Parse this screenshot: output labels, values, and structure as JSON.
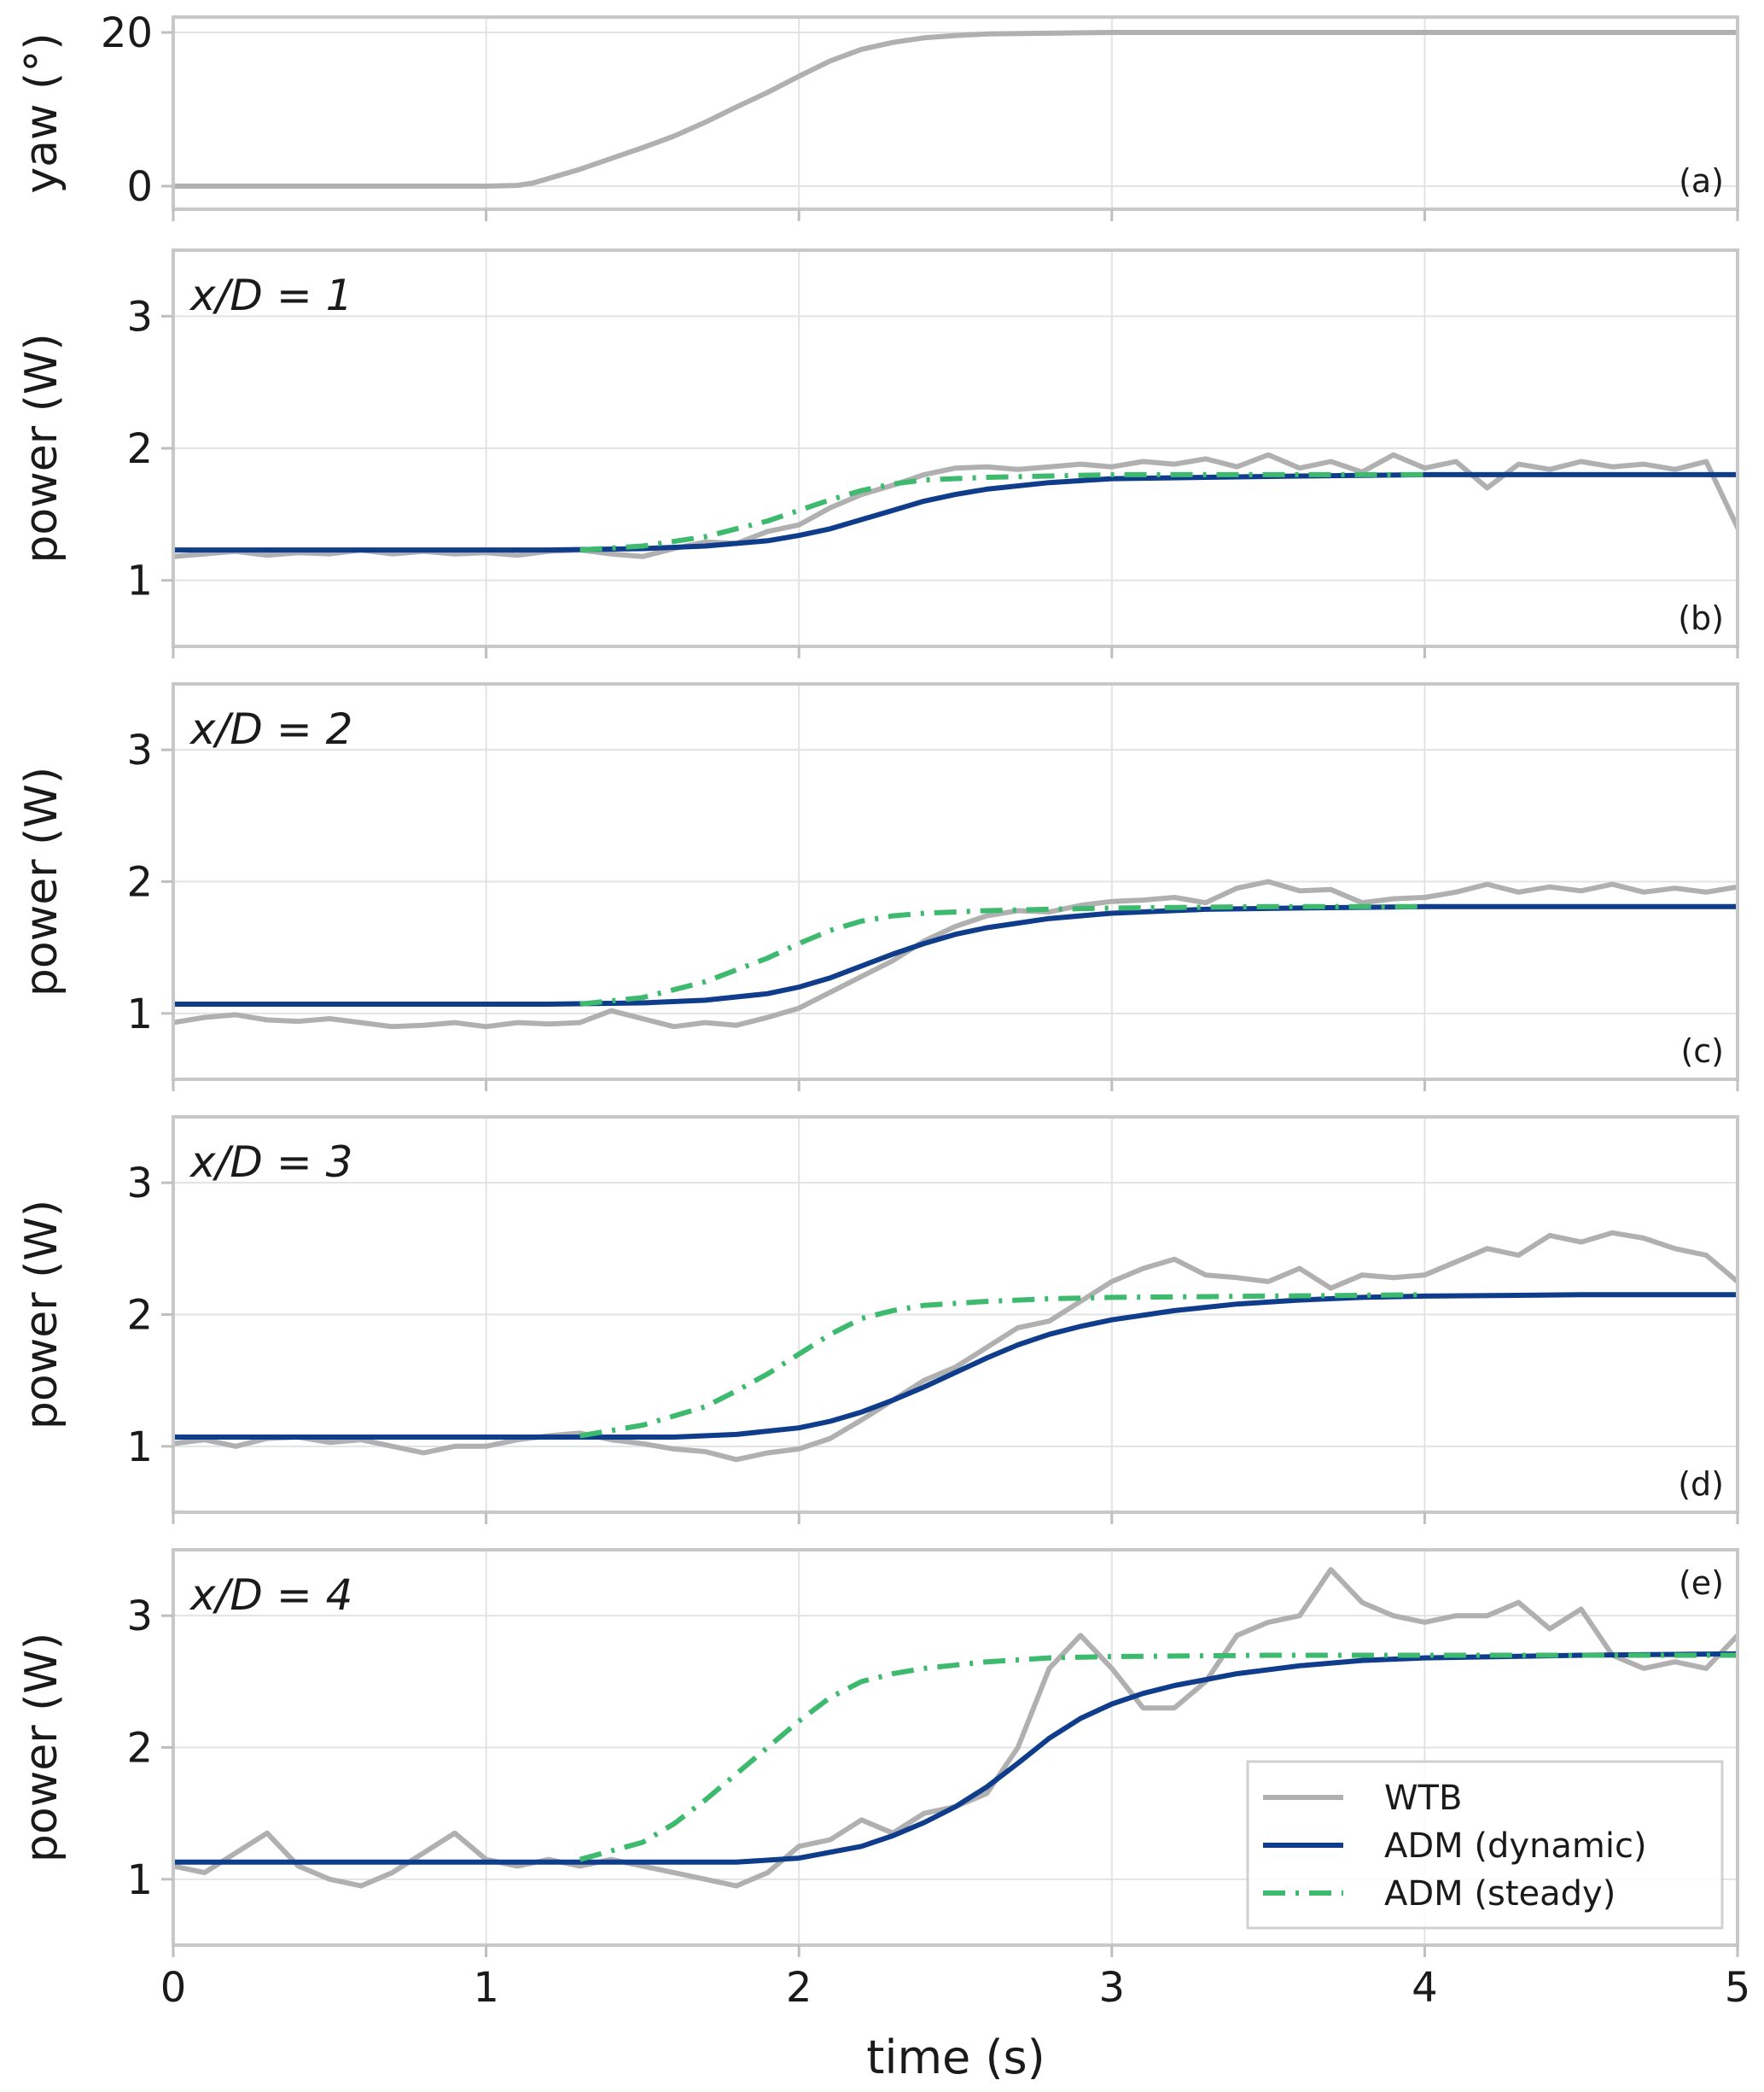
{
  "figure": {
    "xlabel": "time (s)",
    "xlim": [
      0,
      5
    ],
    "xticks": [
      0,
      1,
      2,
      3,
      4,
      5
    ],
    "legend": {
      "placement": "lower-right of panel (e)",
      "entries": [
        {
          "name": "WTB",
          "color": "#b0b0b0",
          "style": "solid"
        },
        {
          "name": "ADM (dynamic)",
          "color": "#0f3d8c",
          "style": "solid"
        },
        {
          "name": "ADM (steady)",
          "color": "#3dba6e",
          "style": "dashdot"
        }
      ]
    }
  },
  "chart_data": [
    {
      "type": "line",
      "panel_label": "(a)",
      "annotation": "",
      "ylabel": "yaw (°)",
      "ylim": [
        -3,
        22
      ],
      "yticks": [
        0,
        20
      ],
      "grid": true,
      "series": [
        {
          "name": "yaw",
          "color": "#b0b0b0",
          "x": [
            0,
            1.0,
            1.1,
            1.15,
            1.2,
            1.3,
            1.4,
            1.5,
            1.6,
            1.7,
            1.8,
            1.9,
            2.0,
            2.1,
            2.2,
            2.3,
            2.4,
            2.5,
            2.6,
            2.8,
            3.0,
            4.0,
            5.0
          ],
          "y": [
            0,
            0,
            0.1,
            0.4,
            1.0,
            2.2,
            3.6,
            5.0,
            6.5,
            8.3,
            10.3,
            12.2,
            14.3,
            16.3,
            17.8,
            18.7,
            19.3,
            19.6,
            19.8,
            19.9,
            20,
            20,
            20
          ]
        }
      ]
    },
    {
      "type": "line",
      "panel_label": "(b)",
      "annotation": "x/D = 1",
      "ylabel": "power (W)",
      "ylim": [
        0.5,
        3.5
      ],
      "yticks": [
        1,
        2,
        3
      ],
      "grid": true,
      "series": [
        {
          "name": "WTB",
          "color": "#b0b0b0",
          "x": [
            0,
            0.1,
            0.2,
            0.3,
            0.4,
            0.5,
            0.6,
            0.7,
            0.8,
            0.9,
            1.0,
            1.1,
            1.2,
            1.3,
            1.4,
            1.5,
            1.6,
            1.7,
            1.8,
            1.9,
            2.0,
            2.1,
            2.2,
            2.3,
            2.4,
            2.5,
            2.6,
            2.7,
            2.8,
            2.9,
            3.0,
            3.1,
            3.2,
            3.3,
            3.4,
            3.5,
            3.6,
            3.7,
            3.8,
            3.9,
            4.0,
            4.1,
            4.2,
            4.3,
            4.4,
            4.5,
            4.6,
            4.7,
            4.8,
            4.9,
            5.0
          ],
          "y": [
            1.18,
            1.2,
            1.22,
            1.19,
            1.21,
            1.2,
            1.23,
            1.2,
            1.22,
            1.2,
            1.21,
            1.19,
            1.22,
            1.23,
            1.2,
            1.18,
            1.24,
            1.29,
            1.28,
            1.37,
            1.42,
            1.55,
            1.65,
            1.72,
            1.8,
            1.85,
            1.86,
            1.84,
            1.86,
            1.88,
            1.86,
            1.9,
            1.88,
            1.92,
            1.86,
            1.95,
            1.85,
            1.9,
            1.82,
            1.95,
            1.85,
            1.9,
            1.7,
            1.88,
            1.84,
            1.9,
            1.86,
            1.88,
            1.84,
            1.9,
            1.4
          ]
        },
        {
          "name": "ADM (dynamic)",
          "color": "#0f3d8c",
          "x": [
            0,
            1.2,
            1.5,
            1.7,
            1.9,
            2.0,
            2.1,
            2.2,
            2.3,
            2.4,
            2.5,
            2.6,
            2.8,
            3.0,
            3.3,
            3.6,
            4.0,
            4.5,
            5.0
          ],
          "y": [
            1.23,
            1.23,
            1.24,
            1.26,
            1.3,
            1.34,
            1.39,
            1.46,
            1.53,
            1.6,
            1.65,
            1.69,
            1.74,
            1.77,
            1.78,
            1.79,
            1.8,
            1.8,
            1.8
          ]
        },
        {
          "name": "ADM (steady)",
          "color": "#3dba6e",
          "x": [
            1.3,
            1.5,
            1.7,
            1.9,
            2.0,
            2.1,
            2.2,
            2.3,
            2.4,
            2.6,
            2.8,
            3.0,
            3.5,
            4.0
          ],
          "y": [
            1.23,
            1.26,
            1.33,
            1.45,
            1.53,
            1.61,
            1.68,
            1.73,
            1.76,
            1.78,
            1.79,
            1.8,
            1.8,
            1.8
          ]
        }
      ]
    },
    {
      "type": "line",
      "panel_label": "(c)",
      "annotation": "x/D = 2",
      "ylabel": "power (W)",
      "ylim": [
        0.5,
        3.5
      ],
      "yticks": [
        1,
        2,
        3
      ],
      "grid": true,
      "series": [
        {
          "name": "WTB",
          "color": "#b0b0b0",
          "x": [
            0,
            0.1,
            0.2,
            0.3,
            0.4,
            0.5,
            0.6,
            0.7,
            0.8,
            0.9,
            1.0,
            1.1,
            1.2,
            1.3,
            1.4,
            1.5,
            1.6,
            1.7,
            1.8,
            1.9,
            2.0,
            2.1,
            2.2,
            2.3,
            2.4,
            2.5,
            2.6,
            2.7,
            2.8,
            2.9,
            3.0,
            3.1,
            3.2,
            3.3,
            3.4,
            3.5,
            3.6,
            3.7,
            3.8,
            3.9,
            4.0,
            4.1,
            4.2,
            4.3,
            4.4,
            4.5,
            4.6,
            4.7,
            4.8,
            4.9,
            5.0
          ],
          "y": [
            0.93,
            0.97,
            0.99,
            0.95,
            0.94,
            0.96,
            0.93,
            0.9,
            0.91,
            0.93,
            0.9,
            0.93,
            0.92,
            0.93,
            1.02,
            0.96,
            0.9,
            0.93,
            0.91,
            0.97,
            1.04,
            1.16,
            1.28,
            1.4,
            1.55,
            1.66,
            1.74,
            1.78,
            1.77,
            1.82,
            1.85,
            1.86,
            1.88,
            1.84,
            1.95,
            2.0,
            1.93,
            1.94,
            1.84,
            1.87,
            1.88,
            1.92,
            1.98,
            1.92,
            1.96,
            1.93,
            1.98,
            1.92,
            1.95,
            1.92,
            1.96
          ]
        },
        {
          "name": "ADM (dynamic)",
          "color": "#0f3d8c",
          "x": [
            0,
            1.2,
            1.5,
            1.7,
            1.9,
            2.0,
            2.1,
            2.2,
            2.3,
            2.4,
            2.5,
            2.6,
            2.8,
            3.0,
            3.3,
            3.6,
            4.0,
            4.5,
            5.0
          ],
          "y": [
            1.07,
            1.07,
            1.08,
            1.1,
            1.15,
            1.2,
            1.27,
            1.36,
            1.45,
            1.53,
            1.6,
            1.65,
            1.72,
            1.76,
            1.79,
            1.8,
            1.81,
            1.81,
            1.81
          ]
        },
        {
          "name": "ADM (steady)",
          "color": "#3dba6e",
          "x": [
            1.3,
            1.5,
            1.7,
            1.9,
            2.0,
            2.1,
            2.2,
            2.3,
            2.4,
            2.6,
            2.8,
            3.0,
            3.5,
            4.0
          ],
          "y": [
            1.07,
            1.12,
            1.24,
            1.42,
            1.53,
            1.63,
            1.7,
            1.74,
            1.76,
            1.78,
            1.79,
            1.8,
            1.81,
            1.81
          ]
        }
      ]
    },
    {
      "type": "line",
      "panel_label": "(d)",
      "annotation": "x/D = 3",
      "ylabel": "power (W)",
      "ylim": [
        0.5,
        3.5
      ],
      "yticks": [
        1,
        2,
        3
      ],
      "grid": true,
      "series": [
        {
          "name": "WTB",
          "color": "#b0b0b0",
          "x": [
            0,
            0.1,
            0.2,
            0.3,
            0.4,
            0.5,
            0.6,
            0.7,
            0.8,
            0.9,
            1.0,
            1.1,
            1.2,
            1.3,
            1.4,
            1.5,
            1.6,
            1.7,
            1.8,
            1.9,
            2.0,
            2.1,
            2.2,
            2.3,
            2.4,
            2.5,
            2.6,
            2.7,
            2.8,
            2.9,
            3.0,
            3.1,
            3.2,
            3.3,
            3.4,
            3.5,
            3.6,
            3.7,
            3.8,
            3.9,
            4.0,
            4.1,
            4.2,
            4.3,
            4.4,
            4.5,
            4.6,
            4.7,
            4.8,
            4.9,
            5.0
          ],
          "y": [
            1.02,
            1.05,
            1.0,
            1.06,
            1.07,
            1.03,
            1.05,
            1.0,
            0.95,
            1.0,
            1.0,
            1.05,
            1.08,
            1.1,
            1.05,
            1.02,
            0.98,
            0.96,
            0.9,
            0.95,
            0.98,
            1.06,
            1.2,
            1.35,
            1.5,
            1.6,
            1.75,
            1.9,
            1.95,
            2.1,
            2.25,
            2.35,
            2.42,
            2.3,
            2.28,
            2.25,
            2.35,
            2.2,
            2.3,
            2.28,
            2.3,
            2.4,
            2.5,
            2.45,
            2.6,
            2.55,
            2.62,
            2.58,
            2.5,
            2.45,
            2.25
          ]
        },
        {
          "name": "ADM (dynamic)",
          "color": "#0f3d8c",
          "x": [
            0,
            1.6,
            1.8,
            2.0,
            2.1,
            2.2,
            2.3,
            2.4,
            2.5,
            2.6,
            2.7,
            2.8,
            2.9,
            3.0,
            3.2,
            3.4,
            3.6,
            3.8,
            4.0,
            4.5,
            5.0
          ],
          "y": [
            1.07,
            1.07,
            1.09,
            1.14,
            1.19,
            1.26,
            1.35,
            1.45,
            1.56,
            1.67,
            1.77,
            1.85,
            1.91,
            1.96,
            2.03,
            2.08,
            2.11,
            2.13,
            2.14,
            2.15,
            2.15
          ]
        },
        {
          "name": "ADM (steady)",
          "color": "#3dba6e",
          "x": [
            1.3,
            1.5,
            1.7,
            1.8,
            1.9,
            2.0,
            2.1,
            2.2,
            2.3,
            2.4,
            2.6,
            2.8,
            3.0,
            3.5,
            4.0
          ],
          "y": [
            1.08,
            1.16,
            1.3,
            1.42,
            1.55,
            1.7,
            1.85,
            1.97,
            2.03,
            2.07,
            2.1,
            2.12,
            2.13,
            2.14,
            2.15
          ]
        }
      ]
    },
    {
      "type": "line",
      "panel_label": "(e)",
      "annotation": "x/D = 4",
      "ylabel": "power (W)",
      "ylim": [
        0.5,
        3.5
      ],
      "yticks": [
        1,
        2,
        3
      ],
      "grid": true,
      "series": [
        {
          "name": "WTB",
          "color": "#b0b0b0",
          "x": [
            0,
            0.1,
            0.2,
            0.3,
            0.4,
            0.5,
            0.6,
            0.7,
            0.8,
            0.9,
            1.0,
            1.1,
            1.2,
            1.3,
            1.4,
            1.5,
            1.6,
            1.7,
            1.8,
            1.9,
            2.0,
            2.1,
            2.2,
            2.3,
            2.4,
            2.5,
            2.6,
            2.7,
            2.8,
            2.9,
            3.0,
            3.1,
            3.2,
            3.3,
            3.4,
            3.5,
            3.6,
            3.7,
            3.8,
            3.9,
            4.0,
            4.1,
            4.2,
            4.3,
            4.4,
            4.5,
            4.6,
            4.7,
            4.8,
            4.9,
            5.0
          ],
          "y": [
            1.1,
            1.05,
            1.2,
            1.35,
            1.1,
            1.0,
            0.95,
            1.05,
            1.2,
            1.35,
            1.15,
            1.1,
            1.15,
            1.1,
            1.15,
            1.1,
            1.05,
            1.0,
            0.95,
            1.05,
            1.25,
            1.3,
            1.45,
            1.35,
            1.5,
            1.55,
            1.65,
            2.0,
            2.6,
            2.85,
            2.6,
            2.3,
            2.3,
            2.5,
            2.85,
            2.95,
            3.0,
            3.35,
            3.1,
            3.0,
            2.95,
            3.0,
            3.0,
            3.1,
            2.9,
            3.05,
            2.7,
            2.6,
            2.65,
            2.6,
            2.85
          ]
        },
        {
          "name": "ADM (dynamic)",
          "color": "#0f3d8c",
          "x": [
            0,
            1.8,
            2.0,
            2.2,
            2.3,
            2.4,
            2.5,
            2.6,
            2.7,
            2.8,
            2.9,
            3.0,
            3.1,
            3.2,
            3.4,
            3.6,
            3.8,
            4.0,
            4.5,
            5.0
          ],
          "y": [
            1.13,
            1.13,
            1.16,
            1.25,
            1.33,
            1.43,
            1.55,
            1.7,
            1.88,
            2.07,
            2.22,
            2.33,
            2.41,
            2.47,
            2.56,
            2.62,
            2.66,
            2.68,
            2.7,
            2.71
          ]
        },
        {
          "name": "ADM (steady)",
          "color": "#3dba6e",
          "x": [
            1.3,
            1.5,
            1.6,
            1.7,
            1.8,
            1.9,
            2.0,
            2.1,
            2.2,
            2.3,
            2.4,
            2.6,
            2.8,
            3.0,
            3.5,
            4.0,
            5.0
          ],
          "y": [
            1.15,
            1.28,
            1.42,
            1.6,
            1.8,
            2.0,
            2.2,
            2.38,
            2.5,
            2.56,
            2.6,
            2.65,
            2.68,
            2.69,
            2.7,
            2.7,
            2.7
          ]
        }
      ]
    }
  ]
}
